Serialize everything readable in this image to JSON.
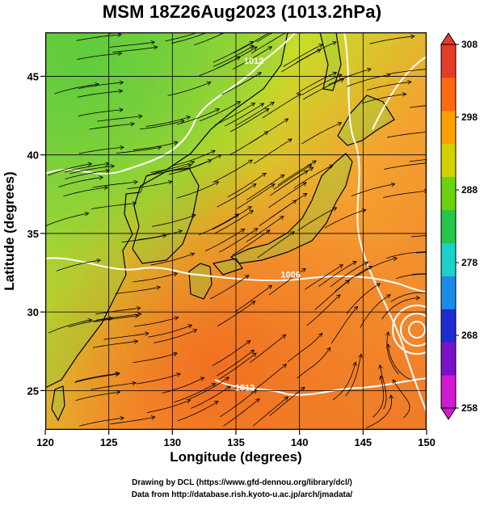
{
  "title": "MSM 18Z26Aug2023 (1013.2hPa)",
  "xaxis": {
    "label": "Longitude (degrees)",
    "ticks": [
      120,
      125,
      130,
      135,
      140,
      145,
      150
    ],
    "range": [
      120,
      150
    ]
  },
  "yaxis": {
    "label": "Latitude  (degrees)",
    "ticks": [
      25,
      30,
      35,
      40,
      45
    ],
    "range": [
      22.5,
      47.8
    ]
  },
  "colorbar": {
    "ticks": [
      308,
      298,
      288,
      278,
      268,
      258
    ],
    "range": [
      258,
      308
    ],
    "colors": [
      "#d21ad2",
      "#7a10c8",
      "#1e2ad2",
      "#1c8ce6",
      "#1ad2c8",
      "#23c84a",
      "#6cd20e",
      "#d2d200",
      "#ffa000",
      "#ff6a10",
      "#e63c28"
    ]
  },
  "contour_labels": [
    {
      "text": "1012",
      "lon": 136.4,
      "lat": 45.8
    },
    {
      "text": "1006",
      "lon": 139.3,
      "lat": 32.2
    },
    {
      "text": "1012",
      "lon": 135.7,
      "lat": 25.0
    }
  ],
  "credits": {
    "line1": "Drawing by DCL (https://www.gfd-dennou.org/library/dcl/)",
    "line2": "Data from http://database.rish.kyoto-u.ac.jp/arch/jmadata/"
  },
  "chart_data": {
    "type": "heatmap",
    "field": "surface air temperature (K) with wind streamlines and pressure contours",
    "xlim": [
      120,
      150
    ],
    "ylim": [
      22.5,
      47.8
    ],
    "clim": [
      258,
      308
    ],
    "grid": true,
    "colorbar_position": "right"
  }
}
